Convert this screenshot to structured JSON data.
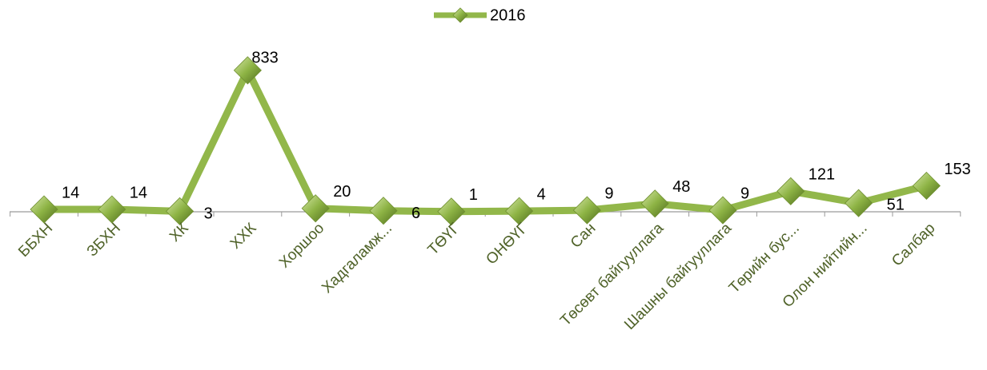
{
  "chart_data": {
    "type": "line",
    "categories": [
      "ББХН",
      "ЗБХН",
      "ХК",
      "ХХК",
      "Хоршоо",
      "Хадгаламж...",
      "ТӨҮГ",
      "ОНӨҮГ",
      "Сан",
      "Төсөвт байгууллага",
      "Шашны байгууллага",
      "Төрийн бус...",
      "Олон нийтийн...",
      "Салбар"
    ],
    "series": [
      {
        "name": "2016",
        "color": "#92b74a",
        "values": [
          14,
          14,
          3,
          833,
          20,
          6,
          1,
          4,
          9,
          48,
          9,
          121,
          51,
          153
        ]
      }
    ],
    "legend": "top"
  }
}
